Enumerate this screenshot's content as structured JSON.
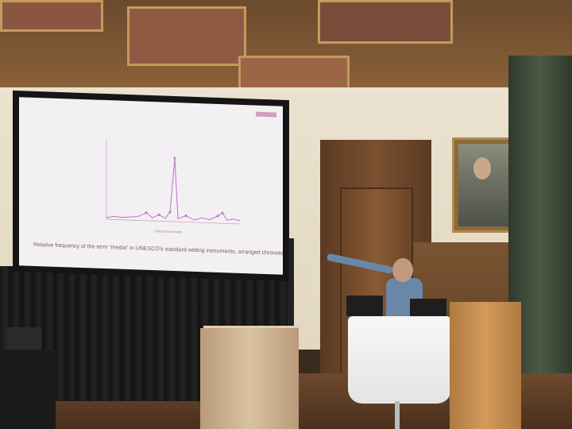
{
  "slide": {
    "caption": "Relative frequency of the term \"media\" in UNESCO's standard-setting instruments, arranged chronologically",
    "x_axis_label": "Cultural Documents"
  },
  "colors": {
    "slide_line": "#c070c8",
    "screen_bg": "#f3f0f3",
    "ceiling": "#8a6138",
    "wall": "#e6dcc8"
  }
}
